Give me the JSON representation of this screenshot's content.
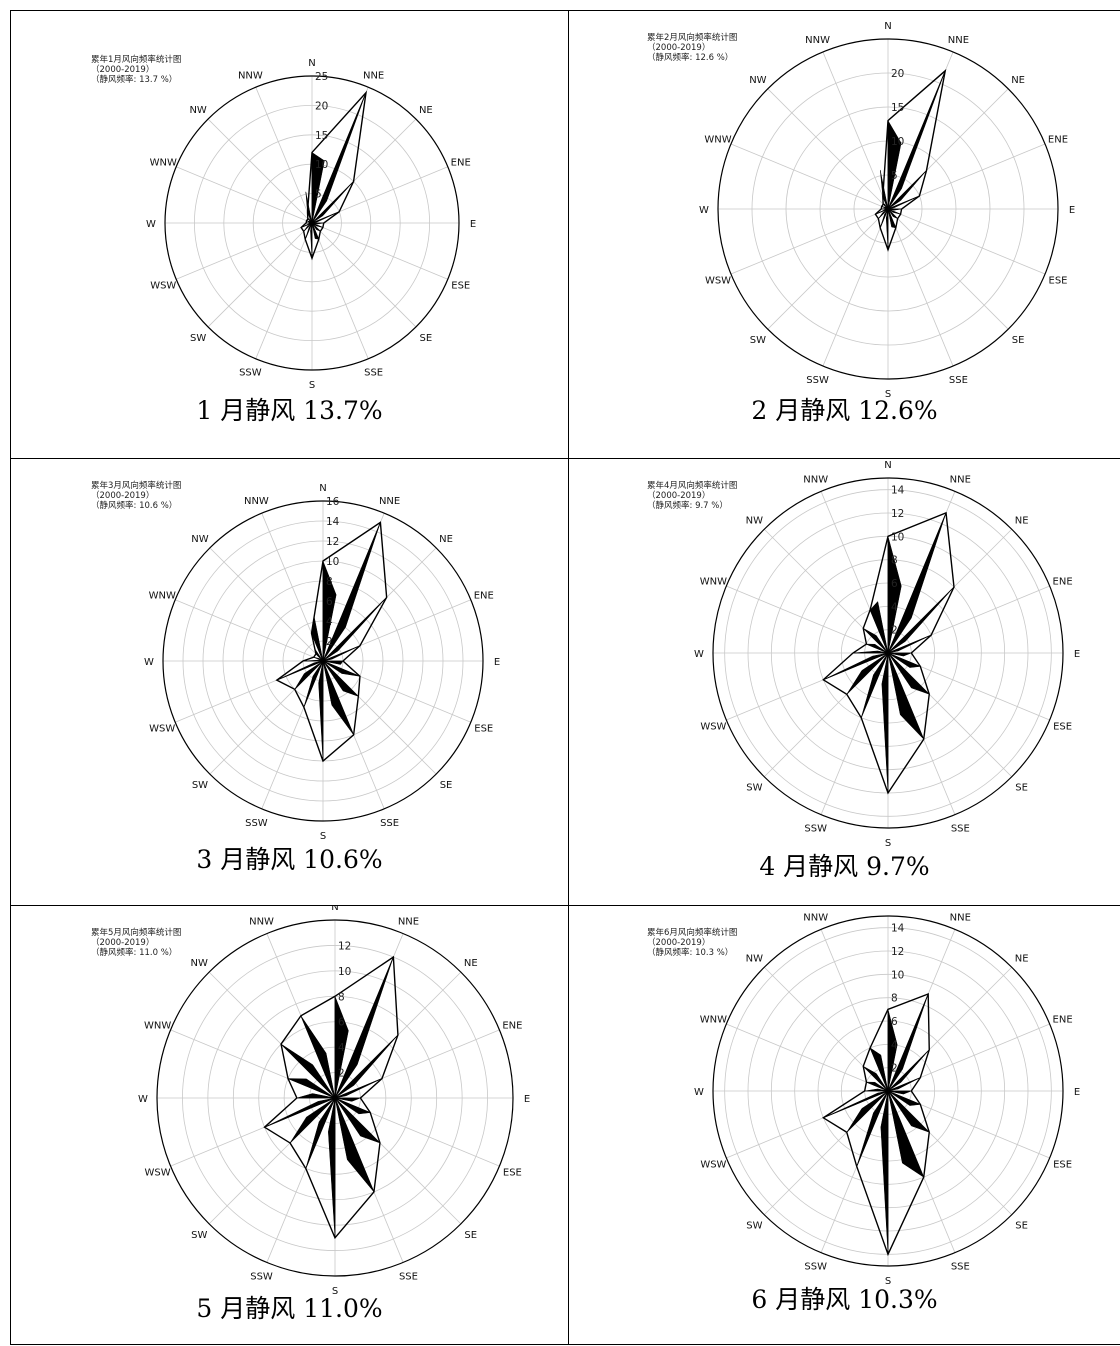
{
  "directions": [
    "N",
    "NNE",
    "NE",
    "ENE",
    "E",
    "ESE",
    "SE",
    "SSE",
    "S",
    "SSW",
    "SW",
    "WSW",
    "W",
    "WNW",
    "NW",
    "NNW"
  ],
  "colors": {
    "fill": "#000000",
    "outline": "#000000",
    "grid": "#c8c8c8",
    "border": "#000000"
  },
  "panels": [
    {
      "caption": "1 月静风 13.7%",
      "title": "累年1月风向频率统计图",
      "subtitle": "（2000-2019）",
      "calm_note": "（静风频率: 13.7 %）",
      "chart_data": {
        "type": "radar",
        "rlim": [
          0,
          25
        ],
        "rticks": [
          5,
          10,
          15,
          20,
          25
        ],
        "angular_labels": [
          "N",
          "NNE",
          "NE",
          "ENE",
          "E",
          "ESE",
          "SE",
          "SSE",
          "S",
          "SSW",
          "SW",
          "WSW",
          "W",
          "WNW",
          "NW",
          "NNW"
        ],
        "series": [
          {
            "values": [
              12,
              24,
              10,
              5,
              2,
              2,
              2,
              3,
              6,
              3,
              2,
              2,
              1,
              1,
              1,
              2
            ]
          }
        ]
      }
    },
    {
      "caption": "2 月静风 12.6%",
      "title": "累年2月风向频率统计图",
      "subtitle": "（2000-2019）",
      "calm_note": "（静风频率: 12.6 %）",
      "chart_data": {
        "type": "radar",
        "rlim": [
          0,
          25
        ],
        "rticks": [
          5,
          10,
          15,
          20
        ],
        "angular_labels": [
          "N",
          "NNE",
          "NE",
          "ENE",
          "E",
          "ESE",
          "SE",
          "SSE",
          "S",
          "SSW",
          "SW",
          "WSW",
          "W",
          "WNW",
          "NW",
          "NNW"
        ],
        "series": [
          {
            "values": [
              13,
              22,
              8,
              5,
              2,
              2,
              2,
              3,
              6,
              3,
              2,
              2,
              1,
              1,
              1,
              2
            ]
          }
        ]
      }
    },
    {
      "caption": "3 月静风 10.6%",
      "title": "累年3月风向频率统计图",
      "subtitle": "（2000-2019）",
      "calm_note": "（静风频率: 10.6 %）",
      "chart_data": {
        "type": "radar",
        "rlim": [
          0,
          16
        ],
        "rticks": [
          2,
          4,
          6,
          8,
          10,
          12,
          14,
          16
        ],
        "angular_labels": [
          "N",
          "NNE",
          "NE",
          "ENE",
          "E",
          "ESE",
          "SE",
          "SSE",
          "S",
          "SSW",
          "SW",
          "WSW",
          "W",
          "WNW",
          "NW",
          "NNW"
        ],
        "series": [
          {
            "values": [
              10,
              15,
              9,
              4,
              2,
              4,
              5,
              8,
              10,
              5,
              4,
              5,
              2,
              1,
              1,
              3
            ]
          }
        ]
      }
    },
    {
      "caption": "4 月静风 9.7%",
      "title": "累年4月风向频率统计图",
      "subtitle": "（2000-2019）",
      "calm_note": "（静风频率: 9.7 %）",
      "chart_data": {
        "type": "radar",
        "rlim": [
          0,
          15
        ],
        "rticks": [
          2,
          4,
          6,
          8,
          10,
          12,
          14
        ],
        "angular_labels": [
          "N",
          "NNE",
          "NE",
          "ENE",
          "E",
          "ESE",
          "SE",
          "SSE",
          "S",
          "SSW",
          "SW",
          "WSW",
          "W",
          "WNW",
          "NW",
          "NNW"
        ],
        "series": [
          {
            "values": [
              10,
              13,
              8,
              4,
              2,
              3,
              5,
              8,
              12,
              6,
              5,
              6,
              3,
              2,
              3,
              4
            ]
          }
        ]
      }
    },
    {
      "caption": "5 月静风 11.0%",
      "title": "累年5月风向频率统计图",
      "subtitle": "（2000-2019）",
      "calm_note": "（静风频率: 11.0 %）",
      "chart_data": {
        "type": "radar",
        "rlim": [
          0,
          14
        ],
        "rticks": [
          2,
          4,
          6,
          8,
          10,
          12
        ],
        "angular_labels": [
          "N",
          "NNE",
          "NE",
          "ENE",
          "E",
          "ESE",
          "SE",
          "SSE",
          "S",
          "SSW",
          "SW",
          "WSW",
          "W",
          "WNW",
          "NW",
          "NNW"
        ],
        "series": [
          {
            "values": [
              8,
              12,
              7,
              4,
              2,
              3,
              5,
              8,
              11,
              6,
              5,
              6,
              3,
              4,
              6,
              7
            ]
          }
        ]
      }
    },
    {
      "caption": "6 月静风 10.3%",
      "title": "累年6月风向频率统计图",
      "subtitle": "（2000-2019）",
      "calm_note": "（静风频率: 10.3 %）",
      "chart_data": {
        "type": "radar",
        "rlim": [
          0,
          15
        ],
        "rticks": [
          2,
          4,
          6,
          8,
          10,
          12,
          14
        ],
        "angular_labels": [
          "N",
          "NNE",
          "NE",
          "ENE",
          "E",
          "ESE",
          "SE",
          "SSE",
          "S",
          "SSW",
          "SW",
          "WSW",
          "W",
          "WNW",
          "NW",
          "NNW"
        ],
        "series": [
          {
            "values": [
              7,
              9,
              5,
              3,
              2,
              3,
              5,
              8,
              14,
              7,
              5,
              6,
              2,
              2,
              3,
              4
            ]
          }
        ]
      }
    }
  ]
}
